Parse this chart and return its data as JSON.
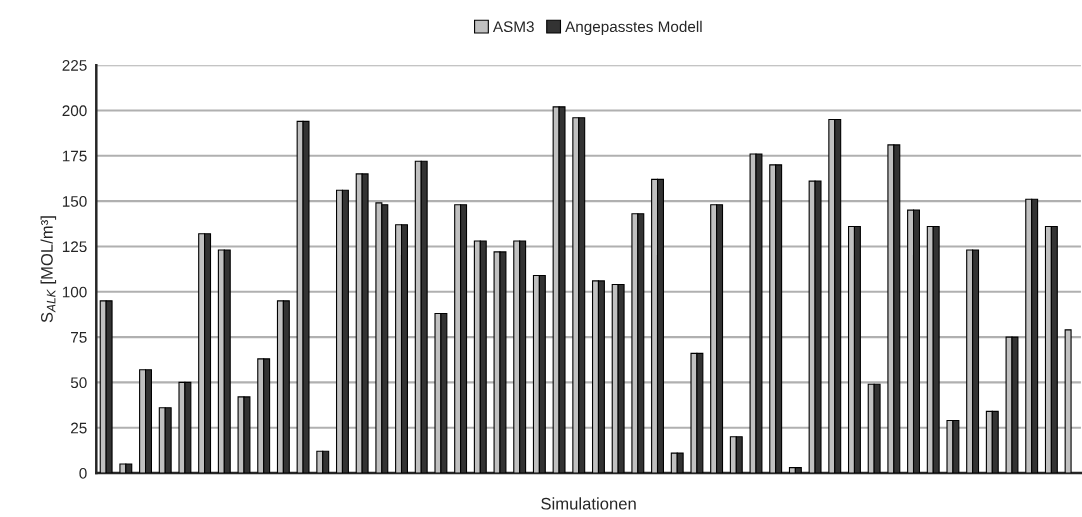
{
  "chart_data": {
    "type": "bar",
    "xlabel": "Simulationen",
    "ylabel": "S$_{ALK}$ [MOL/m³]",
    "categories": [
      null,
      null,
      null,
      null,
      null,
      null,
      null,
      null,
      null,
      null,
      null,
      null,
      null,
      null,
      null,
      null,
      null,
      null,
      null,
      null,
      null,
      null,
      null,
      null,
      null,
      null,
      null,
      null,
      null,
      null,
      null,
      null,
      null,
      null,
      null,
      null,
      null,
      null,
      null,
      null,
      null,
      null,
      null,
      null,
      null,
      null,
      null,
      null,
      null,
      null
    ],
    "series": [
      {
        "name": "ASM3",
        "color": "#c0c0c0",
        "values": [
          95,
          5,
          57,
          36,
          50,
          132,
          123,
          42,
          63,
          95,
          194,
          12,
          156,
          165,
          149,
          137,
          172,
          88,
          148,
          128,
          122,
          128,
          109,
          202,
          196,
          106,
          104,
          143,
          162,
          11,
          66,
          148,
          20,
          176,
          170,
          3,
          161,
          195,
          136,
          49,
          181,
          145,
          136,
          29,
          123,
          34,
          75,
          151,
          136,
          79
        ]
      },
      {
        "name": "Angepasstes Modell",
        "color": "#333333",
        "values": [
          95,
          5,
          57,
          36,
          50,
          132,
          123,
          42,
          63,
          95,
          194,
          12,
          156,
          165,
          148,
          137,
          172,
          88,
          148,
          128,
          122,
          128,
          109,
          202,
          196,
          106,
          104,
          143,
          162,
          11,
          66,
          148,
          20,
          176,
          170,
          3,
          161,
          195,
          136,
          49,
          181,
          145,
          136,
          29,
          123,
          34,
          75,
          151,
          136,
          null
        ]
      }
    ],
    "ylim": [
      0,
      225
    ],
    "yticks": [
      0,
      25,
      50,
      75,
      100,
      125,
      150,
      175,
      200,
      225
    ],
    "grid": "y",
    "legend": "top",
    "tick_labels": "y"
  }
}
